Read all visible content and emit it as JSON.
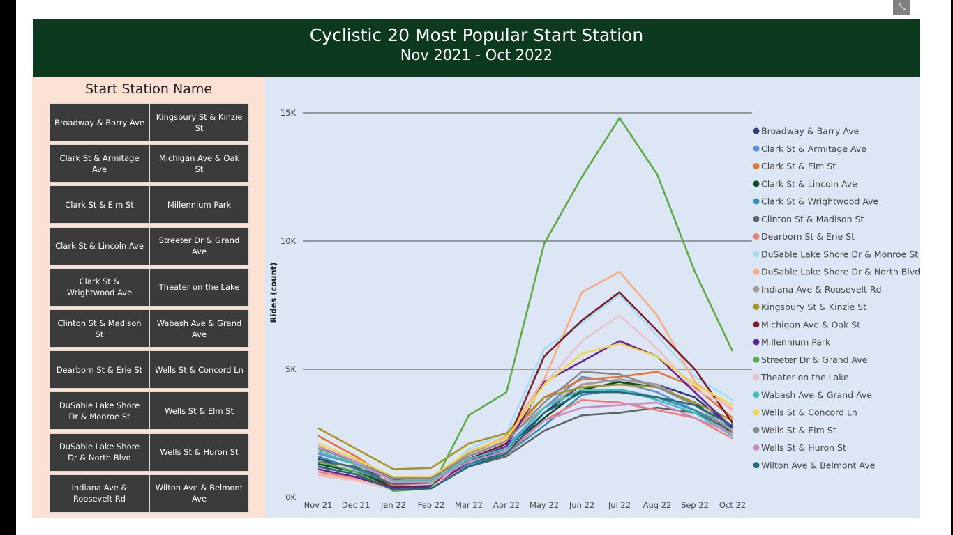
{
  "header": {
    "title": "Cyclistic 20 Most Popular Start Station",
    "subtitle": "Nov 2021 - Oct 2022"
  },
  "focus_icon": "focus-mode-icon",
  "slicer": {
    "title": "Start Station Name",
    "items": [
      "Broadway & Barry Ave",
      "Kingsbury St & Kinzie St",
      "Clark St & Armitage Ave",
      "Michigan Ave & Oak St",
      "Clark St & Elm St",
      "Millennium Park",
      "Clark St & Lincoln Ave",
      "Streeter Dr & Grand Ave",
      "Clark St & Wrightwood Ave",
      "Theater on the Lake",
      "Clinton St & Madison St",
      "Wabash Ave & Grand Ave",
      "Dearborn St & Erie St",
      "Wells St & Concord Ln",
      "DuSable Lake Shore Dr & Monroe St",
      "Wells St & Elm St",
      "DuSable Lake Shore Dr & North Blvd",
      "Wells St & Huron St",
      "Indiana Ave & Roosevelt Rd",
      "Wilton Ave & Belmont Ave"
    ]
  },
  "chart_data": {
    "type": "line",
    "ylabel": "Rides (count)",
    "ylim": [
      0,
      15000
    ],
    "yticks": [
      0,
      5000,
      10000,
      15000
    ],
    "ytick_labels": [
      "0K",
      "5K",
      "10K",
      "15K"
    ],
    "grid": true,
    "legend": "right",
    "x": [
      "Nov 21",
      "Dec 21",
      "Jan 22",
      "Feb 22",
      "Mar 22",
      "Apr 22",
      "May 22",
      "Jun 22",
      "Jul 22",
      "Aug 22",
      "Sep 22",
      "Oct 22"
    ],
    "series": [
      {
        "name": "Broadway & Barry Ave",
        "color": "#2c3e7a",
        "values": [
          1500,
          1150,
          700,
          700,
          1400,
          1900,
          3300,
          4400,
          4600,
          4400,
          3900,
          2700
        ]
      },
      {
        "name": "Clark St & Armitage Ave",
        "color": "#5b8fd6",
        "values": [
          1700,
          1300,
          750,
          750,
          1500,
          2000,
          3500,
          4700,
          4500,
          4100,
          3400,
          2500
        ]
      },
      {
        "name": "Clark St & Elm St",
        "color": "#e5742c",
        "values": [
          2400,
          1600,
          650,
          700,
          1800,
          2300,
          3900,
          4600,
          4700,
          4900,
          4300,
          3100
        ]
      },
      {
        "name": "Clark St & Lincoln Ave",
        "color": "#0f4a26",
        "values": [
          1300,
          1000,
          450,
          500,
          1300,
          1800,
          3100,
          4200,
          4500,
          4300,
          3700,
          2500
        ]
      },
      {
        "name": "Clark St & Wrightwood Ave",
        "color": "#2f8fb5",
        "values": [
          1600,
          1100,
          500,
          550,
          1300,
          1700,
          2800,
          4000,
          4200,
          3900,
          3400,
          2700
        ]
      },
      {
        "name": "Clinton St & Madison St",
        "color": "#5f6466",
        "values": [
          1400,
          1200,
          500,
          550,
          1200,
          1600,
          2600,
          3200,
          3300,
          3500,
          3300,
          2600
        ]
      },
      {
        "name": "Dearborn St & Erie St",
        "color": "#f27b7b",
        "values": [
          1000,
          750,
          450,
          500,
          1200,
          1700,
          3000,
          3800,
          3700,
          3400,
          3100,
          2300
        ]
      },
      {
        "name": "DuSable Lake Shore Dr & Monroe St",
        "color": "#a8dcf0",
        "values": [
          1100,
          800,
          400,
          500,
          1900,
          2500,
          5800,
          6800,
          7900,
          6300,
          4700,
          3800
        ]
      },
      {
        "name": "DuSable Lake Shore Dr & North Blvd",
        "color": "#f7ad82",
        "values": [
          900,
          700,
          350,
          400,
          1700,
          2400,
          4600,
          8000,
          8800,
          7100,
          4500,
          3400
        ]
      },
      {
        "name": "Indiana Ave & Roosevelt Rd",
        "color": "#a69c9a",
        "values": [
          2000,
          1300,
          650,
          700,
          1700,
          2300,
          3500,
          4400,
          4600,
          4400,
          3600,
          2600
        ]
      },
      {
        "name": "Kingsbury St & Kinzie St",
        "color": "#a89420",
        "values": [
          2700,
          1900,
          1100,
          1150,
          2100,
          2500,
          3900,
          4300,
          4400,
          4300,
          3700,
          3000
        ]
      },
      {
        "name": "Michigan Ave & Oak St",
        "color": "#7a1c27",
        "values": [
          1200,
          900,
          400,
          450,
          1500,
          2100,
          5500,
          6900,
          8000,
          6500,
          5000,
          2900
        ]
      },
      {
        "name": "Millennium Park",
        "color": "#63209b",
        "values": [
          1100,
          800,
          350,
          400,
          1400,
          2000,
          4500,
          5300,
          6100,
          5500,
          4100,
          2700
        ]
      },
      {
        "name": "Streeter Dr & Grand Ave",
        "color": "#5eaa47",
        "values": [
          1400,
          1000,
          250,
          350,
          3200,
          4100,
          9900,
          12500,
          14800,
          12600,
          8800,
          5700
        ]
      },
      {
        "name": "Theater on the Lake",
        "color": "#e8c3c8",
        "values": [
          850,
          650,
          300,
          350,
          1600,
          2300,
          4400,
          6100,
          7100,
          5800,
          4200,
          3500
        ]
      },
      {
        "name": "Wabash Ave & Grand Ave",
        "color": "#3fbfb7",
        "values": [
          1800,
          1300,
          650,
          650,
          1500,
          1900,
          3500,
          4200,
          4200,
          3800,
          3300,
          2400
        ]
      },
      {
        "name": "Wells St & Concord Ln",
        "color": "#f3d54a",
        "values": [
          2100,
          1500,
          800,
          800,
          1800,
          2300,
          4400,
          5600,
          6000,
          5500,
          4400,
          3600
        ]
      },
      {
        "name": "Wells St & Elm St",
        "color": "#8a8a8a",
        "values": [
          1900,
          1400,
          750,
          750,
          1600,
          2200,
          3700,
          4900,
          4800,
          4300,
          3600,
          2800
        ]
      },
      {
        "name": "Wells St & Huron St",
        "color": "#cc8bc1",
        "values": [
          2000,
          1400,
          600,
          600,
          1400,
          1800,
          3000,
          3500,
          3600,
          3700,
          3100,
          2500
        ]
      },
      {
        "name": "Wilton Ave & Belmont Ave",
        "color": "#21687d",
        "values": [
          1200,
          900,
          300,
          350,
          1200,
          1700,
          3300,
          4100,
          4100,
          3900,
          3600,
          2800
        ]
      }
    ]
  }
}
